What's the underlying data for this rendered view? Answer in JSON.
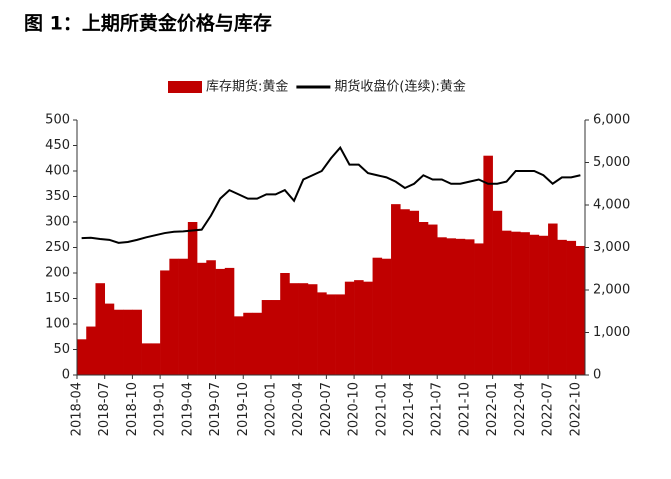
{
  "chart_data": {
    "type": "combo",
    "title": "图 1：上期所黄金价格与库存",
    "x": [
      "2018-04",
      "2018-05",
      "2018-06",
      "2018-07",
      "2018-08",
      "2018-09",
      "2018-10",
      "2018-11",
      "2018-12",
      "2019-01",
      "2019-02",
      "2019-03",
      "2019-04",
      "2019-05",
      "2019-06",
      "2019-07",
      "2019-08",
      "2019-09",
      "2019-10",
      "2019-11",
      "2019-12",
      "2020-01",
      "2020-02",
      "2020-03",
      "2020-04",
      "2020-05",
      "2020-06",
      "2020-07",
      "2020-08",
      "2020-09",
      "2020-10",
      "2020-11",
      "2020-12",
      "2021-01",
      "2021-02",
      "2021-03",
      "2021-04",
      "2021-05",
      "2021-06",
      "2021-07",
      "2021-08",
      "2021-09",
      "2021-10",
      "2021-11",
      "2021-12",
      "2022-01",
      "2022-02",
      "2022-03",
      "2022-04",
      "2022-05",
      "2022-06",
      "2022-07",
      "2022-08",
      "2022-09",
      "2022-10"
    ],
    "series": [
      {
        "name": "库存期货:黄金",
        "type": "bar",
        "color": "#c00000",
        "values": [
          70,
          95,
          180,
          140,
          128,
          128,
          128,
          62,
          62,
          205,
          228,
          228,
          300,
          220,
          225,
          208,
          210,
          115,
          122,
          122,
          147,
          147,
          200,
          180,
          180,
          178,
          162,
          158,
          158,
          183,
          186,
          183,
          230,
          228,
          335,
          325,
          322,
          300,
          295,
          270,
          268,
          267,
          266,
          258,
          430,
          322,
          283,
          281,
          280,
          275,
          273,
          297,
          265,
          263,
          253
        ]
      },
      {
        "name": "期货收盘价(连续):黄金",
        "type": "line",
        "color": "#000000",
        "axis": "y2",
        "values": [
          3220,
          3230,
          3200,
          3180,
          3110,
          3130,
          3180,
          3240,
          3290,
          3340,
          3370,
          3380,
          3400,
          3420,
          3750,
          4150,
          4350,
          4250,
          4150,
          4150,
          4250,
          4250,
          4350,
          4100,
          4600,
          4700,
          4800,
          5100,
          5350,
          4950,
          4950,
          4750,
          4700,
          4650,
          4550,
          4400,
          4500,
          4700,
          4600,
          4600,
          4500,
          4500,
          4550,
          4600,
          4500,
          4500,
          4550,
          4800,
          4800,
          4800,
          4700,
          4500,
          4650,
          4650,
          4700
        ]
      }
    ],
    "ylim": [
      0,
      500
    ],
    "yticks": [
      0,
      50,
      100,
      150,
      200,
      250,
      300,
      350,
      400,
      450,
      500
    ],
    "y2lim": [
      0,
      6000
    ],
    "y2ticks": [
      0,
      {
        "value": 1000,
        "label": "1,000"
      },
      {
        "value": 2000,
        "label": "2,000"
      },
      {
        "value": 3000,
        "label": "3,000"
      },
      {
        "value": 4000,
        "label": "4,000"
      },
      {
        "value": 5000,
        "label": "5,000"
      },
      {
        "value": 6000,
        "label": "6,000"
      }
    ],
    "xtick_every": 3,
    "legend": "top"
  }
}
